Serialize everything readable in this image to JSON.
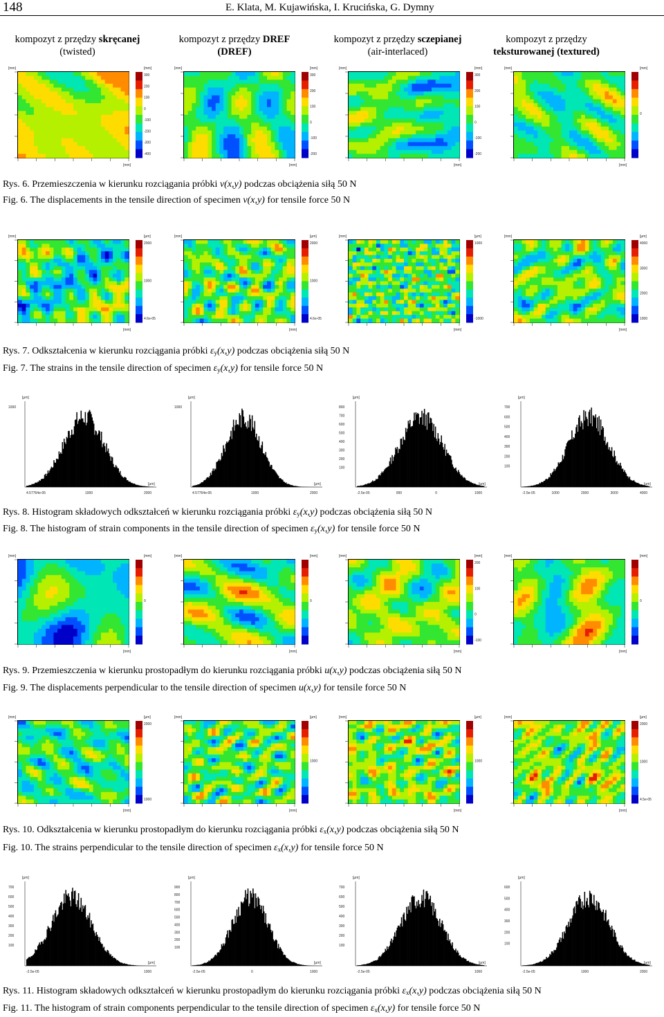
{
  "header": {
    "page_number": "148",
    "authors": "E. Klata, M. Kujawińska, I. Krucińska, G. Dymny"
  },
  "columns": [
    {
      "line1_plain": "kompozyt z przędzy ",
      "line1_bold": "skręcanej",
      "line2": "(twisted)"
    },
    {
      "line1_plain": "kompozyt z przędzy ",
      "line1_bold": "DREF",
      "line2": "(DREF)"
    },
    {
      "line1_plain": "kompozyt z przędzy ",
      "line1_bold": "sczepianej",
      "line2": "(air-interlaced)"
    },
    {
      "line1_plain": "kompozyt z przędzy",
      "line1_bold": "",
      "line2": "teksturowanej (textured)"
    }
  ],
  "captions": {
    "rys6": {
      "label": "Rys. 6.",
      "pre": " Przemieszczenia w kierunku rozciągania próbki ",
      "sym": "v",
      "args": "(x,y)",
      "post": " podczas obciążenia siłą 50 N"
    },
    "fig6": {
      "label": "Fig. 6.",
      "pre": " The displacements in the tensile direction of specimen ",
      "sym": "v",
      "args": "(x,y)",
      "post": " for  tensile force 50 N"
    },
    "rys7": {
      "label": "Rys. 7.",
      "pre": " Odkształcenia w kierunku rozciągania próbki ",
      "sym": "ε",
      "sub": "y",
      "args": "(x,y)",
      "post": " podczas obciążenia siłą 50 N"
    },
    "fig7": {
      "label": "Fig. 7.",
      "pre": " The strains in the tensile direction of specimen ",
      "sym": "ε",
      "sub": "y",
      "args": "(x,y)",
      "post": " for tensile force 50 N"
    },
    "rys8": {
      "label": "Rys. 8.",
      "pre": " Histogram składowych odkształceń w kierunku rozciągania próbki ",
      "sym": "ε",
      "sub": "y",
      "args": "(x,y)",
      "post": " podczas obciążenia siłą 50 N"
    },
    "fig8": {
      "label": "Fig. 8.",
      "pre": " The histogram of strain components in the tensile direction of specimen ",
      "sym": "ε",
      "sub": "y",
      "args": "(x,y)",
      "post": " for  tensile force 50 N"
    },
    "rys9": {
      "label": "Rys. 9.",
      "pre": " Przemieszczenia w kierunku prostopadłym do kierunku rozciągania  próbki ",
      "sym": "u",
      "args": "(x,y)",
      "post": " podczas obciążenia siłą 50 N"
    },
    "fig9": {
      "label": "Fig. 9.",
      "pre": " The displacements perpendicular to the tensile direction of specimen ",
      "sym": "u",
      "args": "(x,y)",
      "post": " for tensile force 50 N"
    },
    "rys10": {
      "label": "Rys. 10.",
      "pre": " Odkształcenia w kierunku prostopadłym do kierunku rozciągania próbki ",
      "sym": "ε",
      "sub": "x",
      "args": "(x,y)",
      "post": " podczas obciążenia siłą 50 N"
    },
    "fig10": {
      "label": "Fig. 10.",
      "pre": " The strains perpendicular to the tensile direction of specimen ",
      "sym": "ε",
      "sub": "x",
      "args": "(x,y)",
      "post": " for tensile force 50 N"
    },
    "rys11": {
      "label": "Rys. 11.",
      "pre": " Histogram składowych odkształceń w kierunku prostopadłym do kierunku rozciągania próbki ",
      "sym": "ε",
      "sub": "x",
      "args": "(x,y)",
      "post": " podczas obciążenia siłą 50 N"
    },
    "fig11": {
      "label": "Fig. 11.",
      "pre": " The histogram of strain components perpendicular to the tensile direction of specimen ",
      "sym": "ε",
      "sub": "x",
      "args": "(x,y)",
      "post": " for tensile force 50 N"
    }
  },
  "colors": {
    "colormap": [
      "#0000c8",
      "#0050ff",
      "#00b4ff",
      "#00e6b4",
      "#32e632",
      "#b4f000",
      "#ffdc00",
      "#ff8c00",
      "#e61e00",
      "#a00000"
    ]
  },
  "unit_labels": {
    "mm": "[mm]",
    "um": "[μm]"
  },
  "figures": {
    "fig6_maps": [
      {
        "bias": 0.62,
        "scale": 2.0,
        "seed": 11,
        "colorbar_ticks": [
          "300",
          "200",
          "100",
          "0",
          "-100",
          "-200",
          "-300",
          "-400"
        ]
      },
      {
        "bias": 0.45,
        "scale": 2.4,
        "seed": 23,
        "colorbar_ticks": [
          "300",
          "200",
          "100",
          "0",
          "-100",
          "-200"
        ]
      },
      {
        "bias": 0.4,
        "scale": 3.2,
        "seed": 37,
        "colorbar_ticks": [
          "300",
          "200",
          "100",
          "0",
          "-100",
          "-200"
        ]
      },
      {
        "bias": 0.42,
        "scale": 2.8,
        "seed": 41,
        "colorbar_ticks": [
          "0"
        ]
      }
    ],
    "fig7_maps": [
      {
        "bias": 0.42,
        "scale": 5.0,
        "seed": 53,
        "colorbar_ticks": [
          "2000",
          "1000",
          "4.6e-05"
        ]
      },
      {
        "bias": 0.45,
        "scale": 5.5,
        "seed": 61,
        "colorbar_ticks": [
          "2000",
          "1000",
          "4.6e-05"
        ]
      },
      {
        "bias": 0.45,
        "scale": 9.0,
        "seed": 71,
        "colorbar_ticks": [
          "1000",
          "-1000"
        ]
      },
      {
        "bias": 0.45,
        "scale": 5.0,
        "seed": 83,
        "colorbar_ticks": [
          "4000",
          "3000",
          "2000",
          "1000"
        ]
      }
    ],
    "fig9_maps": [
      {
        "bias": 0.35,
        "scale": 1.8,
        "seed": 97,
        "colorbar_ticks": [
          "0"
        ]
      },
      {
        "bias": 0.45,
        "scale": 2.2,
        "seed": 101,
        "colorbar_ticks": [
          "0"
        ]
      },
      {
        "bias": 0.48,
        "scale": 2.6,
        "seed": 113,
        "colorbar_ticks": [
          "200",
          "100",
          "0",
          "-100"
        ]
      },
      {
        "bias": 0.45,
        "scale": 2.2,
        "seed": 127,
        "colorbar_ticks": [
          "0"
        ]
      }
    ],
    "fig10_maps": [
      {
        "bias": 0.4,
        "scale": 5.0,
        "seed": 131,
        "colorbar_ticks": [
          "2000",
          "1000"
        ]
      },
      {
        "bias": 0.45,
        "scale": 5.5,
        "seed": 139,
        "colorbar_ticks": [
          "1000"
        ]
      },
      {
        "bias": 0.5,
        "scale": 6.0,
        "seed": 149,
        "colorbar_ticks": [
          "1000"
        ]
      },
      {
        "bias": 0.5,
        "scale": 6.0,
        "seed": 151,
        "colorbar_ticks": [
          "2000",
          "1000",
          "4.5e-05"
        ]
      }
    ],
    "fig8_hists": [
      {
        "mean": 0.45,
        "sd": 0.16,
        "seed": 7,
        "y_ticks": [
          "1000"
        ],
        "x_ticks": [
          "4.57764e-05",
          "1000",
          "2000"
        ]
      },
      {
        "mean": 0.4,
        "sd": 0.14,
        "seed": 9,
        "y_ticks": [
          "1000"
        ],
        "x_ticks": [
          "4.57764e-05",
          "1000",
          "2000"
        ]
      },
      {
        "mean": 0.5,
        "sd": 0.17,
        "seed": 13,
        "y_ticks": [
          "800",
          "700",
          "600",
          "500",
          "400",
          "300",
          "200",
          "100"
        ],
        "x_ticks": [
          "-2.5e-05",
          "000",
          "0",
          "1000"
        ]
      },
      {
        "mean": 0.52,
        "sd": 0.16,
        "seed": 17,
        "y_ticks": [
          "700",
          "600",
          "500",
          "400",
          "300",
          "200",
          "100"
        ],
        "x_ticks": [
          "-2.5e-05",
          "1000",
          "2000",
          "3000",
          "4000"
        ]
      }
    ],
    "fig11_hists": [
      {
        "mean": 0.35,
        "sd": 0.16,
        "seed": 19,
        "y_ticks": [
          "700",
          "600",
          "500",
          "400",
          "300",
          "200",
          "100"
        ],
        "x_ticks": [
          "-2.5e-05",
          "1000"
        ]
      },
      {
        "mean": 0.45,
        "sd": 0.14,
        "seed": 29,
        "y_ticks": [
          "900",
          "800",
          "700",
          "600",
          "500",
          "400",
          "300",
          "200",
          "100"
        ],
        "x_ticks": [
          "-2.5e-05",
          "0",
          "1000"
        ]
      },
      {
        "mean": 0.5,
        "sd": 0.16,
        "seed": 31,
        "y_ticks": [
          "700",
          "600",
          "500",
          "400",
          "300",
          "200",
          "100"
        ],
        "x_ticks": [
          "-2.5e-05",
          "1000"
        ]
      },
      {
        "mean": 0.52,
        "sd": 0.16,
        "seed": 43,
        "y_ticks": [
          "600",
          "500",
          "400",
          "300",
          "200",
          "100"
        ],
        "x_ticks": [
          "-2.5e-05",
          "1000",
          "2000"
        ]
      }
    ]
  }
}
